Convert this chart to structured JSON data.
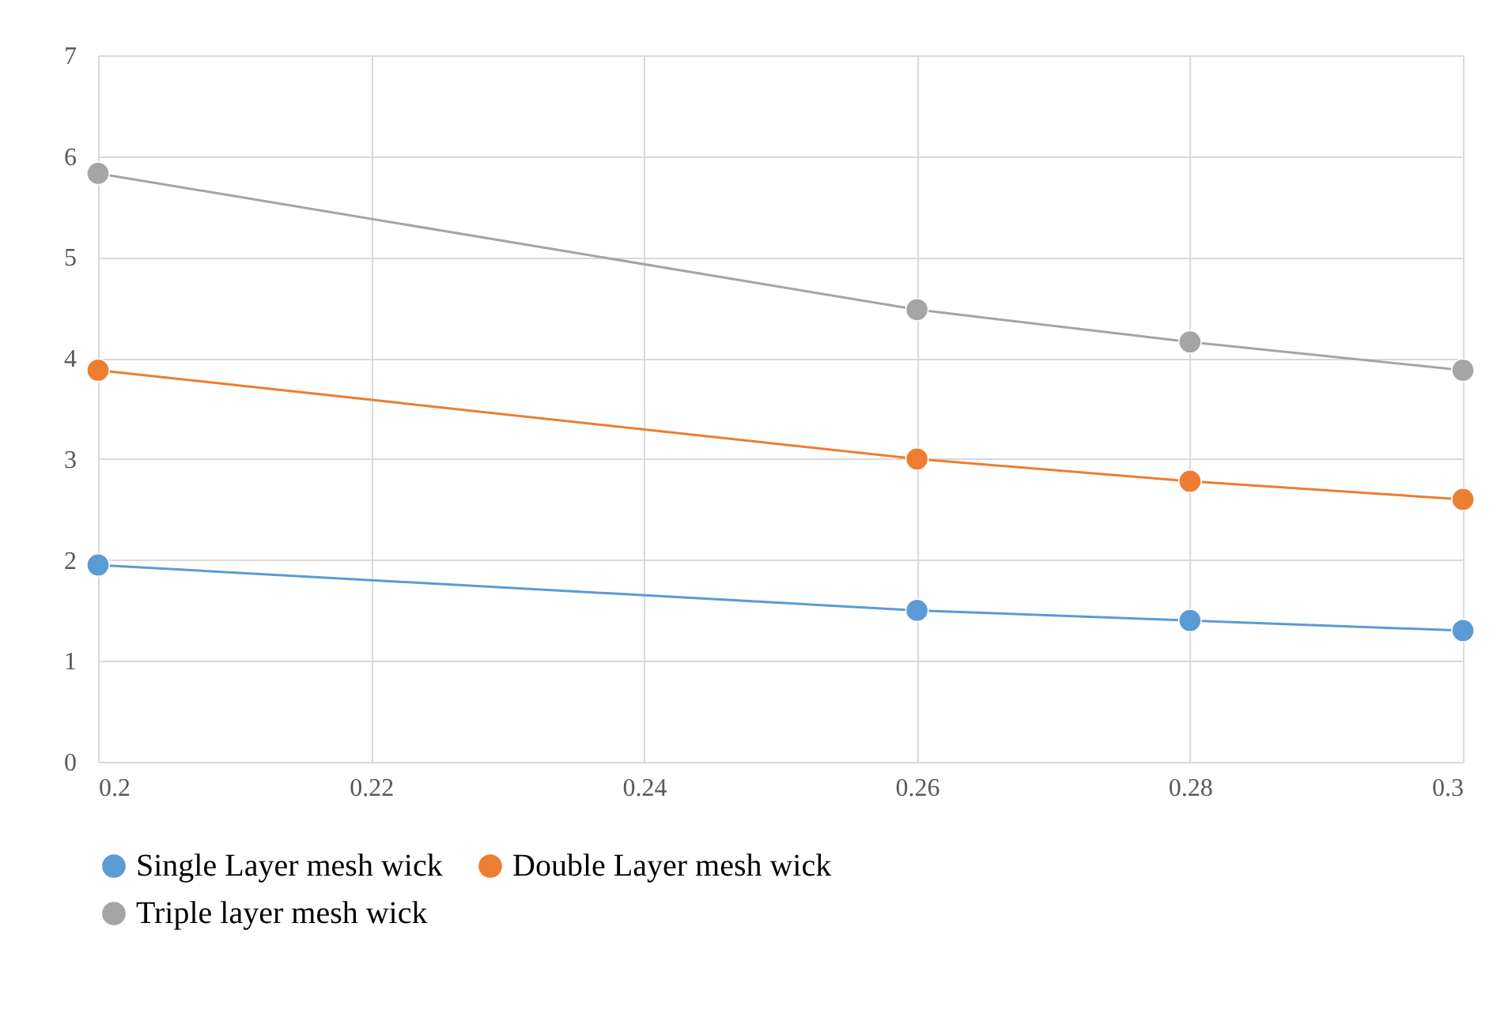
{
  "chart_data": {
    "type": "line",
    "x": [
      0.2,
      0.26,
      0.28,
      0.3
    ],
    "series": [
      {
        "name": "Single Layer mesh wick",
        "color": "#5b9bd5",
        "values": [
          1.95,
          1.5,
          1.4,
          1.3
        ]
      },
      {
        "name": "Double Layer mesh wick",
        "color": "#ed7d31",
        "values": [
          3.88,
          3.0,
          2.78,
          2.6
        ]
      },
      {
        "name": "Triple layer mesh wick",
        "color": "#a5a5a5",
        "values": [
          5.83,
          4.48,
          4.16,
          3.88
        ]
      }
    ],
    "xlim": [
      0.2,
      0.3
    ],
    "xticks": [
      0.2,
      0.22,
      0.24,
      0.26,
      0.28,
      0.3
    ],
    "ylim": [
      0,
      7
    ],
    "yticks": [
      0,
      1,
      2,
      3,
      4,
      5,
      6,
      7
    ],
    "grid": true,
    "legend": "bottom",
    "marker": "circle",
    "line_style": "solid"
  }
}
